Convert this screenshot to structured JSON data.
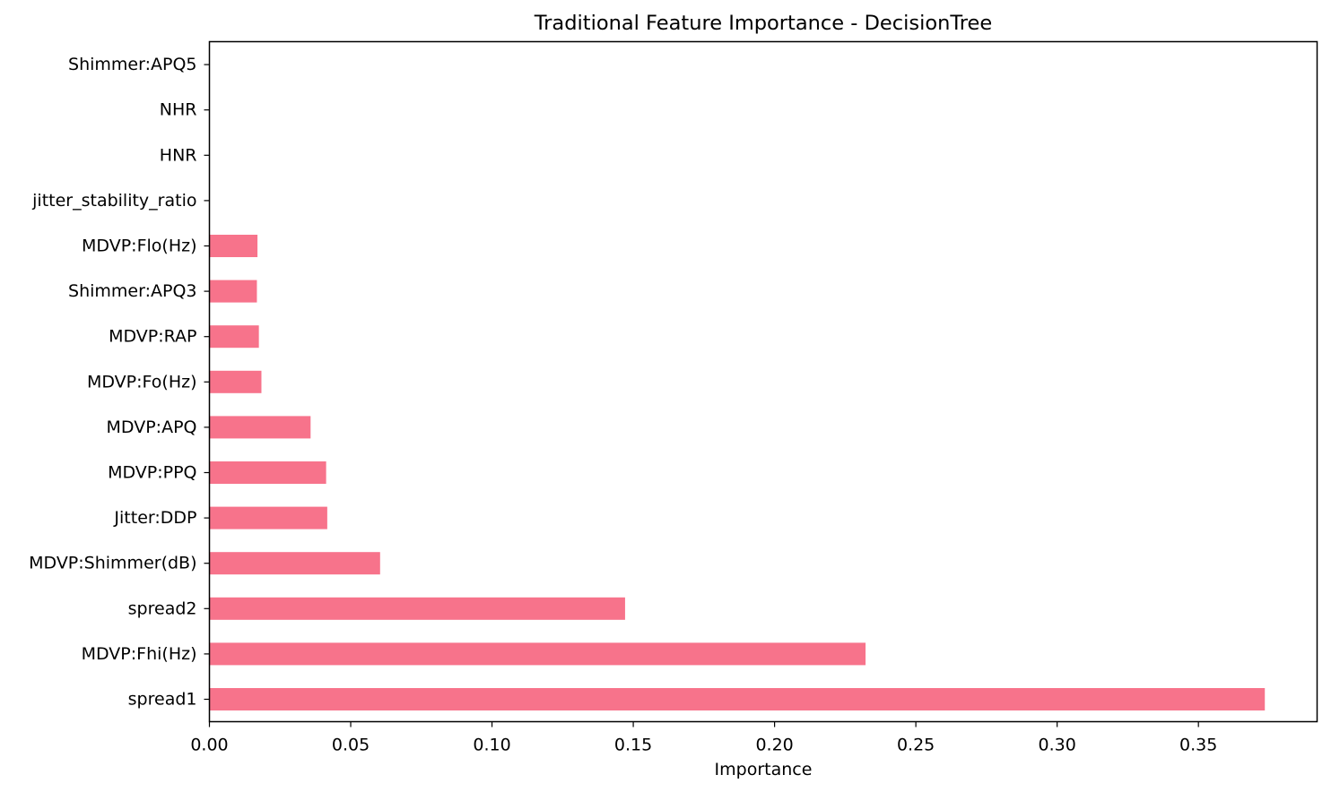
{
  "chart_data": {
    "type": "bar",
    "orientation": "horizontal",
    "title": "Traditional Feature Importance - DecisionTree",
    "xlabel": "Importance",
    "ylabel": "",
    "xlim": [
      0,
      0.392
    ],
    "xticks": [
      "0.00",
      "0.05",
      "0.10",
      "0.15",
      "0.20",
      "0.25",
      "0.30",
      "0.35"
    ],
    "grid": false,
    "bar_color": "#f7738b",
    "categories": [
      "spread1",
      "MDVP:Fhi(Hz)",
      "spread2",
      "MDVP:Shimmer(dB)",
      "Jitter:DDP",
      "MDVP:PPQ",
      "MDVP:APQ",
      "MDVP:Fo(Hz)",
      "MDVP:RAP",
      "Shimmer:APQ3",
      "MDVP:Flo(Hz)",
      "jitter_stability_ratio",
      "HNR",
      "NHR",
      "Shimmer:APQ5"
    ],
    "values": [
      0.3735,
      0.2322,
      0.1471,
      0.0604,
      0.0417,
      0.0413,
      0.0358,
      0.0184,
      0.0175,
      0.0168,
      0.017,
      0.0,
      0.0,
      0.0,
      0.0
    ]
  }
}
